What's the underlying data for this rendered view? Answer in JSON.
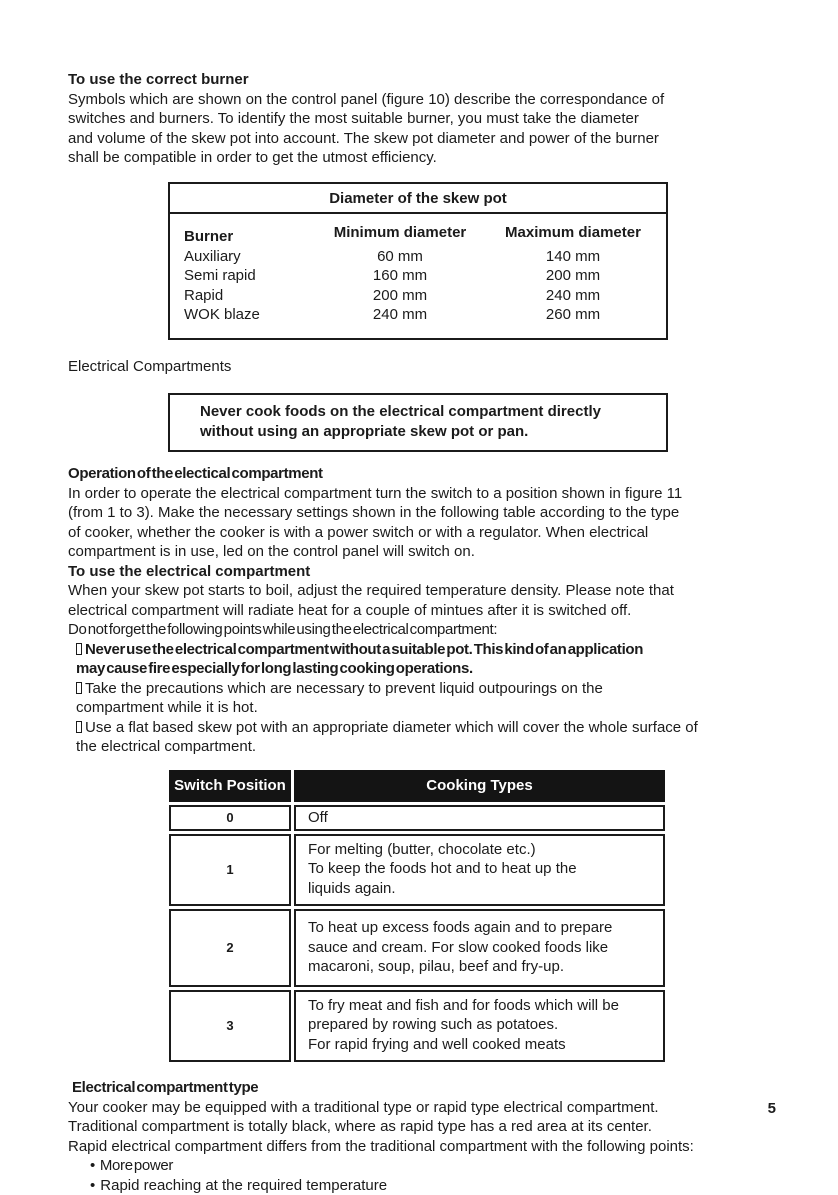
{
  "page_number": "5",
  "burner_section": {
    "heading": "To use the correct burner",
    "paragraph_lines": [
      "Symbols which are shown on the control panel (figure 10) describe the correspondance of",
      "switches and burners. To identify the most suitable burner, you must take the diameter",
      "and volume of the skew pot into account. The skew pot diameter and power of the burner",
      "shall be compatible in order to get the utmost efficiency."
    ]
  },
  "diameter_table": {
    "title": "Diameter of the skew pot",
    "col_burner": "Burner",
    "col_min": "Minimum diameter",
    "col_max": "Maximum diameter",
    "rows": [
      {
        "burner": "Auxiliary",
        "min": "60 mm",
        "max": "140 mm"
      },
      {
        "burner": "Semi rapid",
        "min": "160 mm",
        "max": "200 mm"
      },
      {
        "burner": "Rapid",
        "min": "200 mm",
        "max": "240 mm"
      },
      {
        "burner": "WOK blaze",
        "min": "240 mm",
        "max": "260 mm"
      }
    ]
  },
  "electrical_compartments_label": "Electrical Compartments",
  "warning_box": {
    "lines": [
      "Never cook foods on the electrical compartment directly",
      "without using an appropriate skew pot or pan."
    ]
  },
  "operation_section": {
    "heading": "Operation of the electical compartment",
    "paragraph_lines": [
      "In order to operate the electrical compartment turn the switch to a position shown in figure 11",
      "(from 1 to 3). Make the necessary settings shown in the following table according to the type",
      "of cooker, whether the cooker is with a power switch or with a regulator. When electrical",
      "compartment is in use, led on the control panel will switch on."
    ]
  },
  "use_section": {
    "heading": "To use the electrical compartment",
    "paragraph_lines": [
      "When your skew pot starts to boil, adjust the required temperature density. Please note that",
      "electrical compartment will radiate heat for a couple of mintues after it is switched off."
    ],
    "note_line": "Do not forget the following points while using the electrical compartment:",
    "bullets": [
      {
        "lines": [
          "Never use the electrical compartment without a suitable pot. This kind of an application",
          "may cause fire especially for long lasting cooking operations."
        ]
      },
      {
        "lines": [
          "Take the precautions which are necessary to prevent liquid outpourings on the",
          "compartment while it is hot."
        ]
      },
      {
        "lines": [
          "Use a flat based skew pot with an appropriate diameter which will cover the whole surface of",
          "the electrical compartment."
        ]
      }
    ]
  },
  "switch_table": {
    "col_position": "Switch Position",
    "col_types": "Cooking Types",
    "rows": [
      {
        "position": "0",
        "lines": [
          "Off"
        ]
      },
      {
        "position": "1",
        "lines": [
          "For melting (butter, chocolate etc.)",
          "To keep the foods hot and to heat up the",
          "liquids again."
        ]
      },
      {
        "position": "2",
        "lines": [
          "To heat up excess foods again and to prepare",
          "sauce and cream. For slow cooked foods like",
          "macaroni, soup, pilau, beef and fry-up."
        ]
      },
      {
        "position": "3",
        "lines": [
          "To fry meat and fish and for foods which will be",
          "prepared by rowing such as potatoes.",
          "For rapid frying and well cooked meats"
        ]
      }
    ]
  },
  "type_section": {
    "heading": "Electrical compartment type",
    "paragraph_lines": [
      "Your cooker may be equipped with a traditional type or rapid type electrical compartment.",
      "Traditional compartment is totally black, where as rapid type has a red area at its center.",
      "Rapid electrical compartment differs from the traditional compartment with the following points:"
    ],
    "bullet_char": "•",
    "bullets": [
      "More power",
      "Rapid reaching at the required temperature"
    ]
  }
}
